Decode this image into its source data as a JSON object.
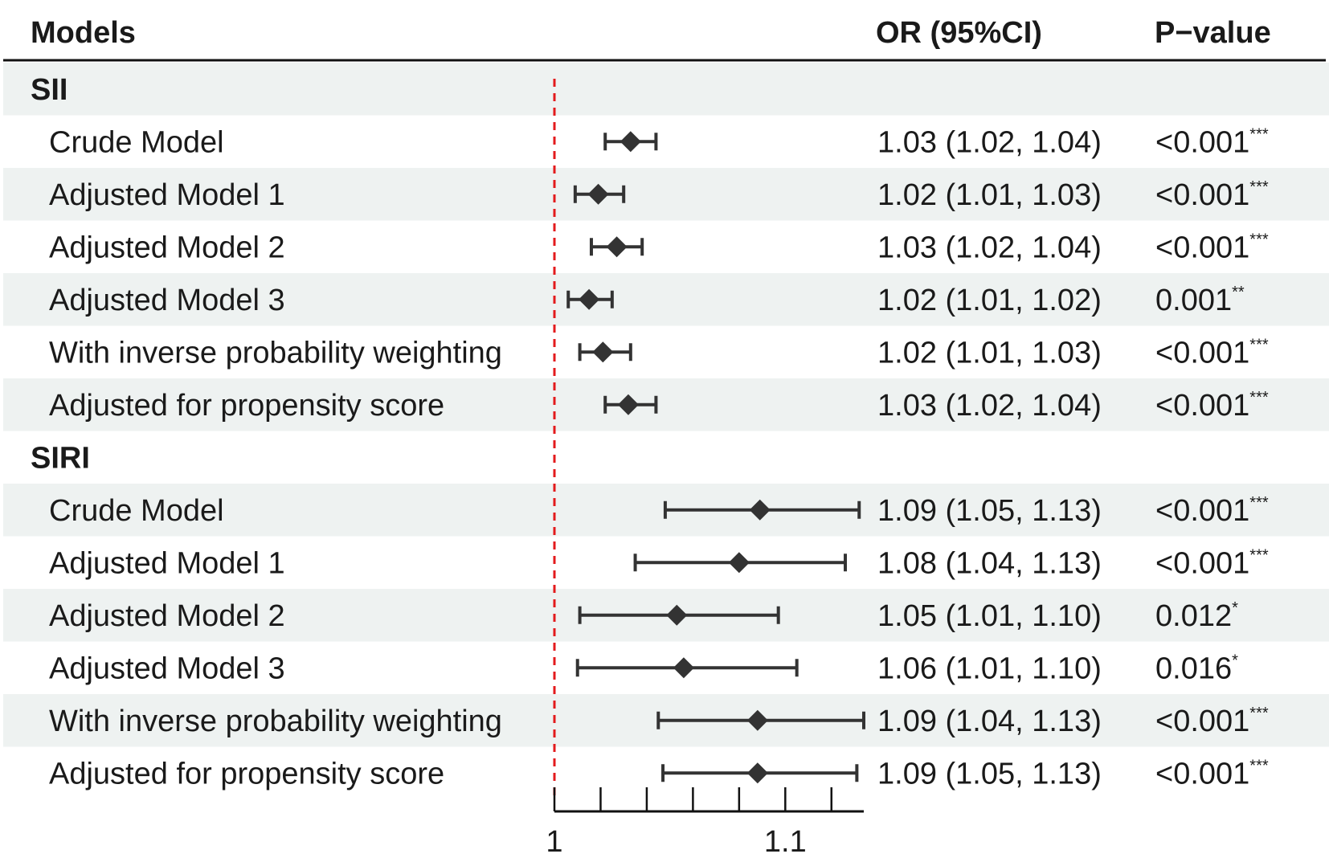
{
  "headers": {
    "models": "Models",
    "or": "OR (95%CI)",
    "p": "P−value"
  },
  "colors": {
    "stripe": "#eef2f1",
    "ink": "#333333",
    "reference_line": "#e31a1c"
  },
  "chart_data": {
    "type": "forest",
    "title": "",
    "reference_value": 1,
    "xlim": [
      1,
      1.134
    ],
    "x_ticks": [
      {
        "value": 1,
        "label": "1"
      },
      {
        "value": 1.02,
        "label": ""
      },
      {
        "value": 1.04,
        "label": ""
      },
      {
        "value": 1.06,
        "label": ""
      },
      {
        "value": 1.08,
        "label": ""
      },
      {
        "value": 1.1,
        "label": "1.1"
      },
      {
        "value": 1.12,
        "label": ""
      }
    ],
    "groups": [
      {
        "name": "SII",
        "rows": [
          {
            "label": "Crude Model",
            "or": 1.033,
            "lo": 1.022,
            "hi": 1.044,
            "or_text": "1.03 (1.02, 1.04)",
            "p": "<0.001",
            "stars": "***"
          },
          {
            "label": "Adjusted Model 1",
            "or": 1.019,
            "lo": 1.009,
            "hi": 1.03,
            "or_text": "1.02 (1.01, 1.03)",
            "p": "<0.001",
            "stars": "***"
          },
          {
            "label": "Adjusted Model 2",
            "or": 1.027,
            "lo": 1.016,
            "hi": 1.038,
            "or_text": "1.03 (1.02, 1.04)",
            "p": "<0.001",
            "stars": "***"
          },
          {
            "label": "Adjusted Model 3",
            "or": 1.015,
            "lo": 1.006,
            "hi": 1.025,
            "or_text": "1.02 (1.01, 1.02)",
            "p": "0.001",
            "stars": "**"
          },
          {
            "label": "With inverse probability weighting",
            "or": 1.021,
            "lo": 1.011,
            "hi": 1.033,
            "or_text": "1.02 (1.01, 1.03)",
            "p": "<0.001",
            "stars": "***"
          },
          {
            "label": "Adjusted for propensity score",
            "or": 1.032,
            "lo": 1.022,
            "hi": 1.044,
            "or_text": "1.03 (1.02, 1.04)",
            "p": "<0.001",
            "stars": "***"
          }
        ]
      },
      {
        "name": "SIRI",
        "rows": [
          {
            "label": "Crude Model",
            "or": 1.089,
            "lo": 1.048,
            "hi": 1.132,
            "or_text": "1.09 (1.05, 1.13)",
            "p": "<0.001",
            "stars": "***"
          },
          {
            "label": "Adjusted Model 1",
            "or": 1.08,
            "lo": 1.035,
            "hi": 1.126,
            "or_text": "1.08 (1.04, 1.13)",
            "p": "<0.001",
            "stars": "***"
          },
          {
            "label": "Adjusted Model 2",
            "or": 1.053,
            "lo": 1.011,
            "hi": 1.097,
            "or_text": "1.05 (1.01, 1.10)",
            "p": "0.012",
            "stars": "*"
          },
          {
            "label": "Adjusted Model 3",
            "or": 1.056,
            "lo": 1.01,
            "hi": 1.105,
            "or_text": "1.06 (1.01, 1.10)",
            "p": "0.016",
            "stars": "*"
          },
          {
            "label": "With inverse probability weighting",
            "or": 1.088,
            "lo": 1.045,
            "hi": 1.134,
            "or_text": "1.09 (1.04, 1.13)",
            "p": "<0.001",
            "stars": "***"
          },
          {
            "label": "Adjusted for propensity score",
            "or": 1.088,
            "lo": 1.047,
            "hi": 1.131,
            "or_text": "1.09 (1.05, 1.13)",
            "p": "<0.001",
            "stars": "***"
          }
        ]
      }
    ]
  }
}
